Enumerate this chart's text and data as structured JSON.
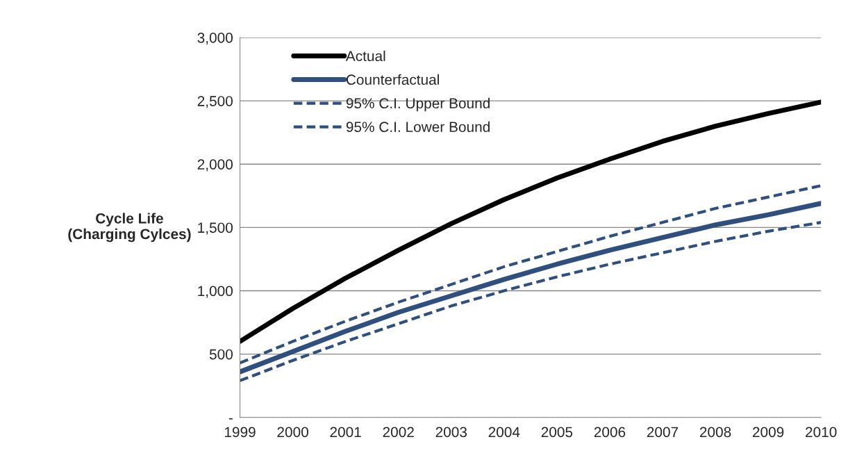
{
  "chart_data": {
    "type": "line",
    "ylabel": "Cycle Life\n(Charging Cylces)",
    "x": [
      1999,
      2000,
      2001,
      2002,
      2003,
      2004,
      2005,
      2006,
      2007,
      2008,
      2009,
      2010
    ],
    "series": [
      {
        "name": "Actual",
        "color": "#000000",
        "line_style": "solid",
        "values": [
          600,
          860,
          1100,
          1320,
          1530,
          1720,
          1890,
          2040,
          2180,
          2300,
          2400,
          2490
        ]
      },
      {
        "name": "Counterfactual",
        "color": "#2f4f7f",
        "line_style": "solid",
        "values": [
          360,
          520,
          680,
          830,
          960,
          1090,
          1210,
          1320,
          1420,
          1520,
          1600,
          1690
        ]
      },
      {
        "name": "95% C.I. Upper Bound",
        "color": "#2f4f7f",
        "line_style": "dashed",
        "values": [
          430,
          600,
          760,
          910,
          1050,
          1190,
          1310,
          1430,
          1540,
          1650,
          1740,
          1830
        ]
      },
      {
        "name": "95% C.I. Lower Bound",
        "color": "#2f4f7f",
        "line_style": "dashed",
        "values": [
          290,
          450,
          600,
          740,
          880,
          1000,
          1110,
          1210,
          1300,
          1390,
          1470,
          1540
        ]
      }
    ],
    "xlim": [
      1999,
      2010
    ],
    "xticks": [
      1999,
      2000,
      2001,
      2002,
      2003,
      2004,
      2005,
      2006,
      2007,
      2008,
      2009,
      2010
    ],
    "ylim": [
      0,
      3000
    ],
    "yticks": [
      {
        "value": 0,
        "label": "-"
      },
      {
        "value": 500,
        "label": "500"
      },
      {
        "value": 1000,
        "label": "1,000"
      },
      {
        "value": 1500,
        "label": "1,500"
      },
      {
        "value": 2000,
        "label": "2,000"
      },
      {
        "value": 2500,
        "label": "2,500"
      },
      {
        "value": 3000,
        "label": "3,000"
      }
    ],
    "grid": "y",
    "legend": "top left",
    "marker": "none"
  }
}
